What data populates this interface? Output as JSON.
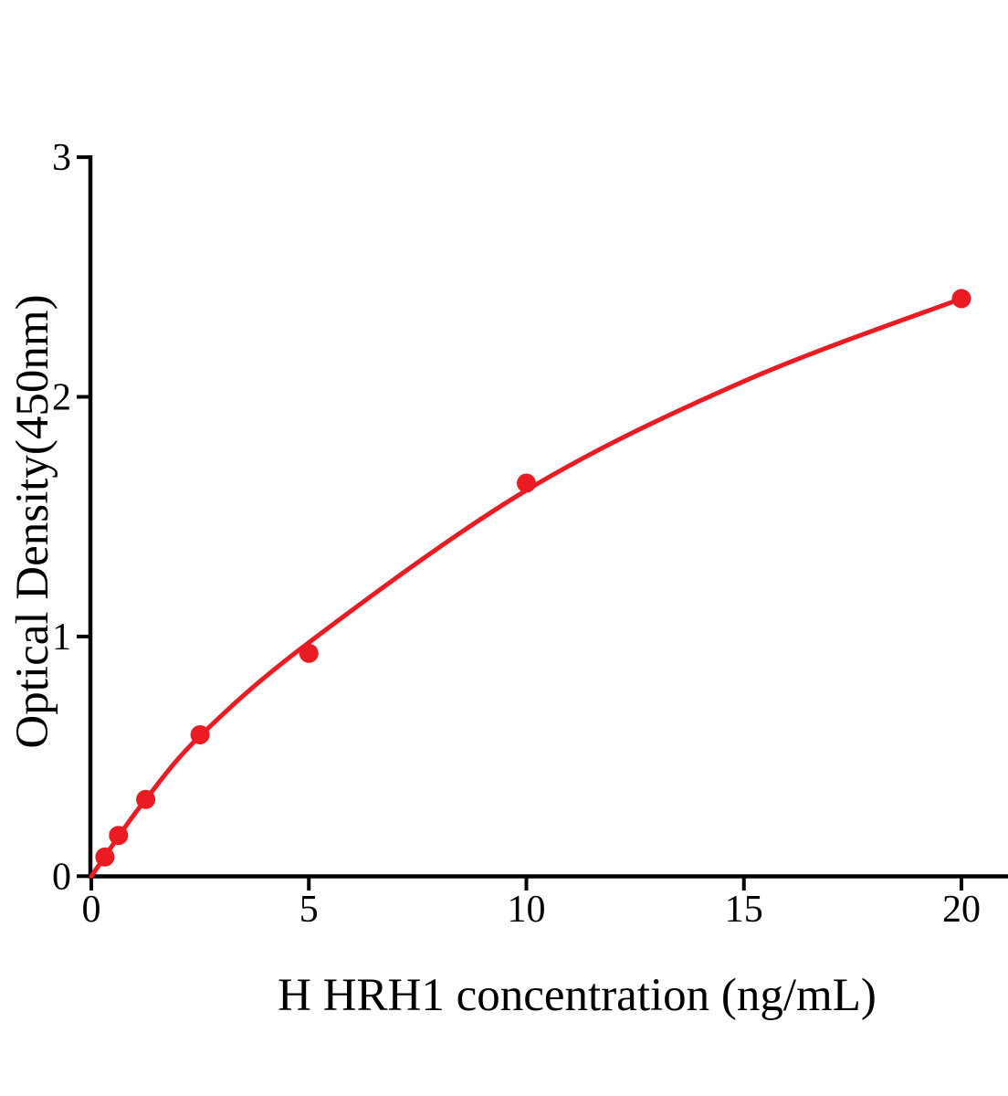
{
  "chart_data": {
    "type": "scatter",
    "title": "",
    "xlabel": "H HRH1 concentration (ng/mL)",
    "ylabel": "Optical Density(450nm)",
    "x_ticks": [
      0,
      5,
      10,
      15,
      20
    ],
    "x_tick_labels": [
      "0",
      "5",
      "10",
      "15",
      "20"
    ],
    "y_ticks": [
      0,
      1,
      2,
      3
    ],
    "y_tick_labels": [
      "0",
      "1",
      "2",
      "3"
    ],
    "xlim": [
      0,
      21.1
    ],
    "ylim": [
      0,
      3
    ],
    "grid": false,
    "legend": "none",
    "series_name": "H HRH1 standard curve",
    "points": [
      {
        "x": 0.313,
        "y": 0.08
      },
      {
        "x": 0.625,
        "y": 0.17
      },
      {
        "x": 1.25,
        "y": 0.32
      },
      {
        "x": 2.5,
        "y": 0.59
      },
      {
        "x": 5,
        "y": 0.93
      },
      {
        "x": 10,
        "y": 1.64
      },
      {
        "x": 20,
        "y": 2.41
      }
    ],
    "curve_anchors": [
      [
        0,
        0
      ],
      [
        0.313,
        0.082
      ],
      [
        0.625,
        0.165
      ],
      [
        1.25,
        0.32
      ],
      [
        2.5,
        0.585
      ],
      [
        5,
        0.975
      ],
      [
        10,
        1.61
      ],
      [
        15,
        2.065
      ],
      [
        20,
        2.41
      ]
    ],
    "colors": {
      "series": "#EA1B22",
      "axis": "#000000",
      "background": "#ffffff"
    }
  }
}
